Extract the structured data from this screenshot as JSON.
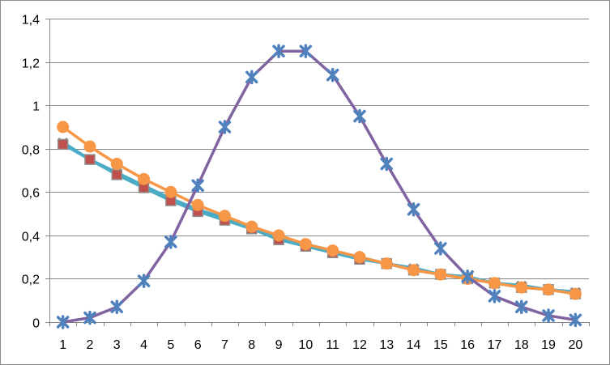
{
  "chart_data": {
    "type": "line",
    "title": "",
    "xlabel": "",
    "ylabel": "",
    "x": [
      1,
      2,
      3,
      4,
      5,
      6,
      7,
      8,
      9,
      10,
      11,
      12,
      13,
      14,
      15,
      16,
      17,
      18,
      19,
      20
    ],
    "x_tick_labels": [
      "1",
      "2",
      "3",
      "4",
      "5",
      "6",
      "7",
      "8",
      "9",
      "10",
      "11",
      "12",
      "13",
      "14",
      "15",
      "16",
      "17",
      "18",
      "19",
      "20"
    ],
    "ylim": [
      0,
      1.4
    ],
    "y_ticks": [
      0,
      0.2,
      0.4,
      0.6,
      0.8,
      1,
      1.2,
      1.4
    ],
    "y_tick_labels": [
      "0",
      "0,2",
      "0,4",
      "0,6",
      "0,8",
      "1",
      "1,2",
      "1,4"
    ],
    "grid": "horizontal major gridlines",
    "legend": "none",
    "series": [
      {
        "color": "#4BACC6",
        "marker": "x",
        "marker_color": "#7F7F7F",
        "values": [
          0.83,
          0.75,
          0.69,
          0.63,
          0.57,
          0.52,
          0.48,
          0.44,
          0.39,
          0.36,
          0.33,
          0.3,
          0.27,
          0.25,
          0.22,
          0.21,
          0.18,
          0.17,
          0.15,
          0.14
        ]
      },
      {
        "color": "#4BACC6",
        "marker": "square",
        "marker_color": "#C0504D",
        "values": [
          0.82,
          0.75,
          0.68,
          0.62,
          0.56,
          0.51,
          0.47,
          0.43,
          0.38,
          0.35,
          0.32,
          0.29,
          0.27,
          0.24,
          0.22,
          0.2,
          0.18,
          0.16,
          0.15,
          0.13
        ]
      },
      {
        "color": "#F79646",
        "marker": "circle",
        "marker_color": "#F79646",
        "values": [
          0.9,
          0.81,
          0.73,
          0.66,
          0.6,
          0.54,
          0.49,
          0.44,
          0.4,
          0.36,
          0.33,
          0.3,
          0.27,
          0.24,
          0.22,
          0.2,
          0.18,
          0.16,
          0.15,
          0.13
        ]
      },
      {
        "color": "#8064A2",
        "marker": "star",
        "marker_color": "#4F81BD",
        "values": [
          0.0,
          0.02,
          0.07,
          0.19,
          0.37,
          0.63,
          0.9,
          1.13,
          1.25,
          1.25,
          1.14,
          0.95,
          0.73,
          0.52,
          0.34,
          0.21,
          0.12,
          0.07,
          0.03,
          0.01
        ]
      }
    ]
  }
}
